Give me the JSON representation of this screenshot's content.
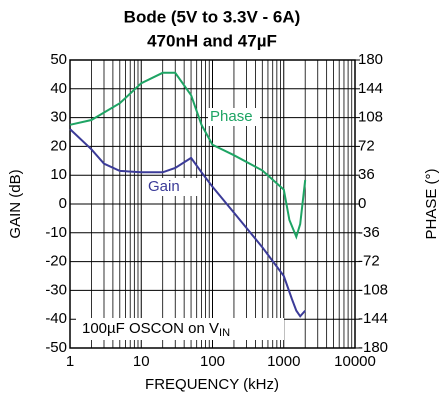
{
  "chart_data": {
    "type": "line",
    "title": "Bode (5V to 3.3V - 6A)",
    "subtitle": "470nH and 47µF",
    "x_label": "FREQUENCY (kHz)",
    "y_label": "GAIN (dB)",
    "y2_label": "PHASE (°)",
    "log_x": true,
    "grid": true,
    "xlim": [
      1,
      10000
    ],
    "xticks": [
      1,
      10,
      100,
      1000,
      10000
    ],
    "ylim": [
      -50,
      50
    ],
    "yticks": [
      -50,
      -40,
      -30,
      -20,
      -10,
      0,
      10,
      20,
      30,
      40,
      50
    ],
    "y2lim": [
      -180,
      180
    ],
    "y2ticks": [
      -180,
      -144,
      -108,
      -72,
      -36,
      0,
      36,
      72,
      108,
      144,
      180
    ],
    "annotations": [
      {
        "text": "100µF OSCON on V",
        "sub": "IN"
      }
    ],
    "series": [
      {
        "name": "Gain",
        "color": "#3b3b98",
        "axis": "y",
        "x": [
          1,
          2,
          3,
          5,
          10,
          20,
          30,
          50,
          70,
          100,
          200,
          500,
          1000,
          1300,
          1500,
          1700,
          2000
        ],
        "values": [
          26,
          19,
          14,
          11.5,
          11,
          11,
          12.5,
          16,
          11,
          6,
          -3,
          -15,
          -25,
          -33,
          -37,
          -39,
          -37
        ]
      },
      {
        "name": "Phase",
        "color": "#1ea464",
        "axis": "y2",
        "x": [
          1,
          2,
          5,
          10,
          20,
          30,
          50,
          70,
          100,
          200,
          500,
          1000,
          1200,
          1500,
          1700,
          2000
        ],
        "values": [
          99,
          105,
          126,
          151,
          164,
          164,
          136,
          99,
          74,
          61,
          42,
          18,
          -20,
          -41,
          -25,
          30
        ]
      }
    ]
  }
}
